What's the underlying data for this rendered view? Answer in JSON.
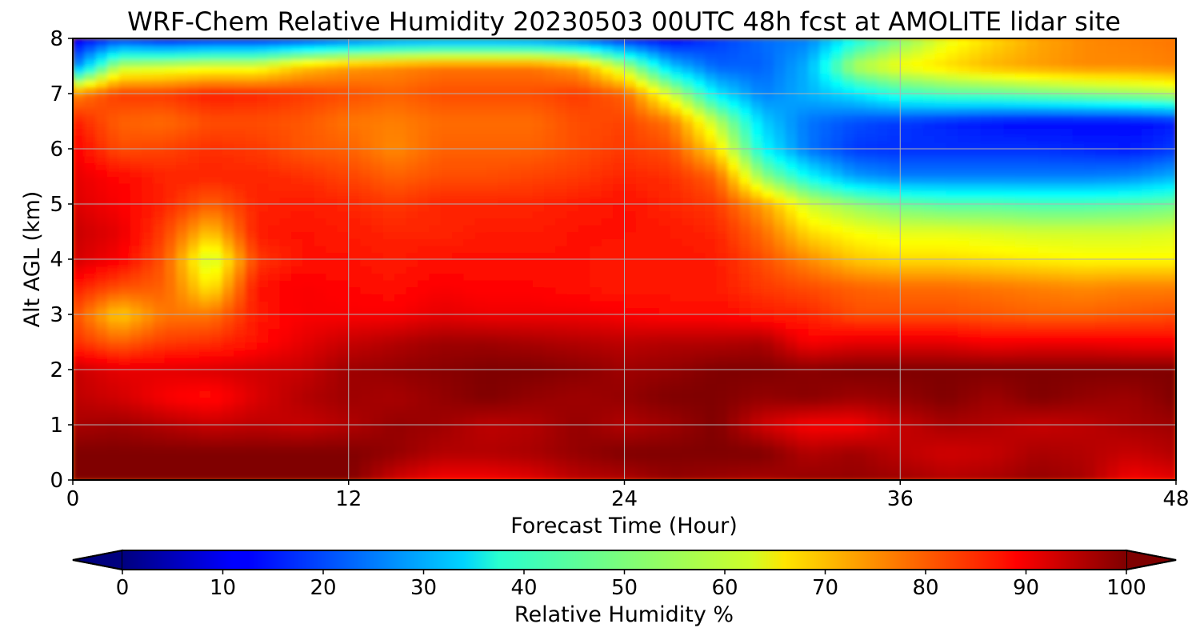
{
  "chart_data": {
    "type": "heatmap",
    "subtype": "filled-contour",
    "title": "WRF-Chem Relative Humidity 20230503 00UTC 48h fcst at AMOLITE lidar site",
    "xlabel": "Forecast Time (Hour)",
    "ylabel": "Alt AGL (km)",
    "xlim": [
      0,
      48
    ],
    "ylim": [
      0,
      8
    ],
    "x_ticks": [
      "0",
      "12",
      "24",
      "36",
      "48"
    ],
    "y_ticks": [
      "0",
      "1",
      "2",
      "3",
      "4",
      "5",
      "6",
      "7",
      "8"
    ],
    "grid": true,
    "colormap": "jet",
    "colorbar": {
      "label": "Relative Humidity %",
      "range": [
        0,
        100
      ],
      "ticks": [
        "0",
        "10",
        "20",
        "30",
        "40",
        "50",
        "60",
        "70",
        "80",
        "90",
        "100"
      ],
      "orientation": "horizontal",
      "placement": "bottom",
      "extend": "both"
    },
    "x_hours": [
      0,
      2,
      4,
      6,
      8,
      10,
      12,
      14,
      16,
      18,
      20,
      22,
      24,
      26,
      28,
      30,
      32,
      34,
      36,
      38,
      40,
      42,
      44,
      46,
      48
    ],
    "z_km": [
      0,
      0.5,
      1,
      1.5,
      2,
      2.5,
      3,
      3.5,
      4,
      4.5,
      5,
      5.5,
      6,
      6.5,
      7,
      7.5,
      8
    ],
    "values_pct": [
      [
        100,
        100,
        100,
        100,
        100,
        100,
        100,
        92,
        88,
        88,
        90,
        94,
        95,
        98,
        97,
        96,
        98,
        98,
        97,
        95,
        96,
        98,
        96,
        88,
        90
      ],
      [
        100,
        100,
        100,
        100,
        100,
        100,
        100,
        98,
        95,
        95,
        96,
        98,
        100,
        100,
        100,
        100,
        95,
        97,
        94,
        92,
        93,
        96,
        95,
        93,
        95
      ],
      [
        96,
        97,
        95,
        93,
        94,
        93,
        95,
        98,
        97,
        94,
        95,
        98,
        95,
        97,
        100,
        92,
        88,
        88,
        93,
        96,
        95,
        93,
        94,
        96,
        97
      ],
      [
        94,
        92,
        88,
        86,
        91,
        95,
        97,
        96,
        98,
        100,
        98,
        97,
        98,
        100,
        100,
        98,
        99,
        97,
        98,
        100,
        97,
        100,
        98,
        97,
        100
      ],
      [
        93,
        90,
        90,
        91,
        92,
        93,
        97,
        98,
        99,
        100,
        100,
        99,
        97,
        98,
        100,
        100,
        99,
        100,
        100,
        100,
        100,
        100,
        100,
        100,
        100
      ],
      [
        83,
        78,
        82,
        83,
        86,
        90,
        93,
        95,
        97,
        97,
        96,
        95,
        94,
        95,
        95,
        96,
        88,
        90,
        90,
        90,
        88,
        89,
        89,
        88,
        88
      ],
      [
        80,
        67,
        76,
        76,
        85,
        88,
        88,
        88,
        90,
        89,
        89,
        89,
        88,
        87,
        87,
        85,
        84,
        80,
        80,
        80,
        79,
        78,
        78,
        79,
        80
      ],
      [
        85,
        80,
        78,
        64,
        86,
        88,
        87,
        86,
        88,
        87,
        87,
        86,
        85,
        85,
        85,
        82,
        80,
        78,
        77,
        77,
        76,
        75,
        74,
        75,
        75
      ],
      [
        92,
        88,
        79,
        56,
        82,
        86,
        86,
        85,
        86,
        86,
        86,
        86,
        85,
        86,
        85,
        80,
        74,
        68,
        66,
        66,
        65,
        64,
        63,
        63,
        63
      ],
      [
        93,
        90,
        81,
        68,
        85,
        86,
        85,
        84,
        84,
        85,
        85,
        86,
        86,
        85,
        84,
        77,
        66,
        62,
        60,
        60,
        59,
        58,
        58,
        58,
        59
      ],
      [
        91,
        88,
        84,
        78,
        84,
        85,
        84,
        82,
        84,
        84,
        84,
        85,
        86,
        84,
        82,
        72,
        58,
        52,
        48,
        46,
        46,
        45,
        45,
        46,
        48
      ],
      [
        90,
        87,
        84,
        84,
        84,
        83,
        81,
        78,
        80,
        80,
        81,
        82,
        84,
        83,
        78,
        52,
        38,
        28,
        25,
        25,
        25,
        25,
        25,
        26,
        30
      ],
      [
        88,
        80,
        81,
        83,
        82,
        79,
        78,
        74,
        78,
        78,
        78,
        80,
        82,
        80,
        66,
        38,
        24,
        18,
        17,
        17,
        17,
        17,
        16,
        15,
        18
      ],
      [
        85,
        78,
        77,
        80,
        80,
        79,
        76,
        75,
        77,
        77,
        77,
        80,
        81,
        76,
        56,
        33,
        24,
        20,
        18,
        16,
        14,
        13,
        13,
        13,
        15
      ],
      [
        74,
        82,
        82,
        85,
        84,
        82,
        80,
        78,
        80,
        80,
        80,
        82,
        78,
        58,
        36,
        25,
        30,
        35,
        42,
        45,
        46,
        48,
        50,
        52,
        55
      ],
      [
        24,
        56,
        58,
        60,
        60,
        68,
        72,
        74,
        76,
        76,
        76,
        72,
        55,
        32,
        22,
        22,
        30,
        55,
        62,
        66,
        70,
        72,
        74,
        74,
        75
      ],
      [
        10,
        18,
        14,
        16,
        16,
        18,
        22,
        25,
        26,
        26,
        25,
        22,
        15,
        12,
        18,
        23,
        25,
        38,
        50,
        60,
        66,
        71,
        74,
        75,
        76
      ]
    ]
  }
}
